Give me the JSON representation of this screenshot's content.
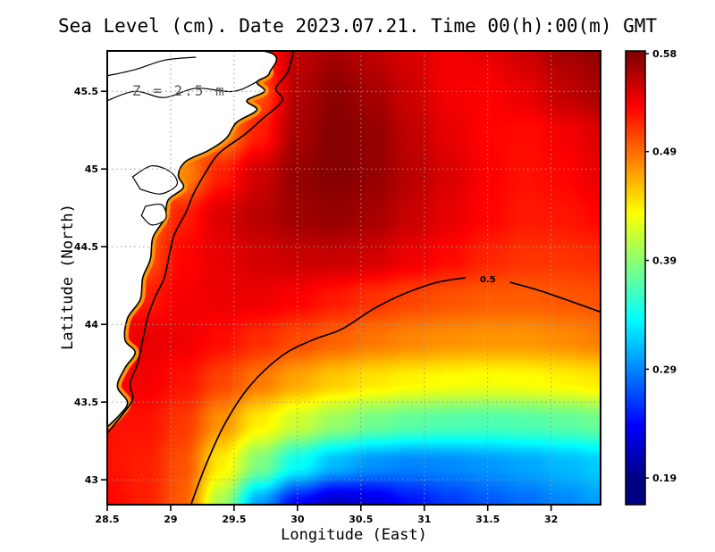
{
  "title": "Sea Level (cm). Date 2023.07.21. Time 00(h):00(m) GMT",
  "xlabel": "Longitude (East)",
  "ylabel": "Latitude (North)",
  "annotation": "Z = 2.5 m",
  "colors": {
    "land": "#ffffff",
    "coast_stroke": "#000000",
    "fringe": "#ff9000",
    "gridline": "#9a9a9a",
    "frame": "#000000",
    "annotation_text": "#5a5a5a"
  },
  "chart_data": {
    "type": "heatmap",
    "title": "Sea Level (cm). Date 2023.07.21. Time 00(h):00(m) GMT",
    "x_range": [
      28.5,
      32.39
    ],
    "y_range": [
      42.84,
      45.76
    ],
    "x_ticks": {
      "values": [
        28.5,
        29,
        29.5,
        30,
        30.5,
        31,
        31.5,
        32
      ],
      "labels": [
        "28.5",
        "29",
        "29.5",
        "30",
        "30.5",
        "31",
        "31.5",
        "32"
      ]
    },
    "y_ticks": {
      "values": [
        43,
        43.5,
        44,
        44.5,
        45,
        45.5
      ],
      "labels": [
        "43",
        "43.5",
        "44",
        "44.5",
        "45",
        "45.5"
      ]
    },
    "grid_on": true,
    "legend_position": "none",
    "colorbar": {
      "position": "right",
      "vmin": 0.19,
      "vmax": 0.58,
      "ticks": [
        {
          "value": 0.58,
          "label": "0.58"
        },
        {
          "value": 0.49,
          "label": "0.49"
        },
        {
          "value": 0.39,
          "label": "0.39"
        },
        {
          "value": 0.29,
          "label": "0.29"
        },
        {
          "value": 0.19,
          "label": "0.19"
        }
      ]
    },
    "palette": [
      {
        "t": 0,
        "color": "#000085"
      },
      {
        "t": 0.125,
        "color": "#0000ff"
      },
      {
        "t": 0.375,
        "color": "#00ffff"
      },
      {
        "t": 0.625,
        "color": "#ffff00"
      },
      {
        "t": 0.875,
        "color": "#ff0000"
      },
      {
        "t": 1,
        "color": "#800000"
      }
    ],
    "grid": {
      "lon0": 28.5,
      "dlon": 0.3,
      "ncols": 14,
      "lat0": 45.76,
      "dlat": 0.265455,
      "nrows": 12,
      "order": "north_to_south",
      "values": [
        [
          0.52,
          0.52,
          0.51,
          0.5,
          0.51,
          0.555,
          0.565,
          0.555,
          0.545,
          0.535,
          0.54,
          0.55,
          0.565,
          0.572
        ],
        [
          0.52,
          0.52,
          0.51,
          0.49,
          0.5,
          0.56,
          0.575,
          0.565,
          0.55,
          0.535,
          0.532,
          0.54,
          0.555,
          0.565
        ],
        [
          0.52,
          0.52,
          0.51,
          0.48,
          0.52,
          0.565,
          0.578,
          0.572,
          0.555,
          0.54,
          0.53,
          0.527,
          0.535,
          0.545
        ],
        [
          0.52,
          0.51,
          0.48,
          0.52,
          0.55,
          0.572,
          0.578,
          0.572,
          0.558,
          0.545,
          0.532,
          0.525,
          0.53,
          0.54
        ],
        [
          0.52,
          0.49,
          0.52,
          0.545,
          0.558,
          0.568,
          0.572,
          0.565,
          0.552,
          0.54,
          0.53,
          0.522,
          0.524,
          0.53
        ],
        [
          0.52,
          0.5,
          0.53,
          0.54,
          0.548,
          0.552,
          0.553,
          0.548,
          0.538,
          0.528,
          0.518,
          0.512,
          0.512,
          0.515
        ],
        [
          0.52,
          0.52,
          0.535,
          0.538,
          0.538,
          0.532,
          0.522,
          0.512,
          0.505,
          0.5,
          0.497,
          0.496,
          0.498,
          0.5
        ],
        [
          0.53,
          0.54,
          0.537,
          0.527,
          0.515,
          0.503,
          0.494,
          0.486,
          0.48,
          0.476,
          0.474,
          0.474,
          0.478,
          0.484
        ],
        [
          0.53,
          0.535,
          0.525,
          0.505,
          0.485,
          0.467,
          0.453,
          0.443,
          0.437,
          0.433,
          0.431,
          0.433,
          0.437,
          0.442
        ],
        [
          0.525,
          0.525,
          0.51,
          0.475,
          0.44,
          0.415,
          0.395,
          0.38,
          0.372,
          0.368,
          0.366,
          0.368,
          0.372,
          0.378
        ],
        [
          0.525,
          0.52,
          0.5,
          0.44,
          0.385,
          0.34,
          0.31,
          0.295,
          0.29,
          0.292,
          0.297,
          0.303,
          0.31,
          0.318
        ],
        [
          0.53,
          0.52,
          0.495,
          0.4,
          0.3,
          0.24,
          0.215,
          0.225,
          0.245,
          0.26,
          0.272,
          0.28,
          0.29,
          0.3
        ]
      ]
    },
    "contours": [
      {
        "level": 0.5,
        "label": "0.5",
        "label_at": [
          31.5,
          44.29
        ],
        "parts": [
          [
            [
              32.39,
              44.08
            ],
            [
              32.15,
              44.15
            ],
            [
              31.9,
              44.22
            ],
            [
              31.68,
              44.27
            ]
          ],
          [
            [
              31.32,
              44.3
            ],
            [
              31.1,
              44.27
            ],
            [
              30.85,
              44.2
            ],
            [
              30.6,
              44.1
            ],
            [
              30.35,
              43.97
            ],
            [
              30.12,
              43.9
            ],
            [
              29.88,
              43.8
            ],
            [
              29.62,
              43.6
            ],
            [
              29.42,
              43.35
            ],
            [
              29.27,
              43.08
            ],
            [
              29.16,
              42.84
            ]
          ]
        ]
      },
      {
        "level": 0.5,
        "label": null,
        "parts": [
          [
            [
              29.97,
              45.76
            ],
            [
              29.92,
              45.62
            ],
            [
              29.83,
              45.52
            ],
            [
              29.88,
              45.44
            ],
            [
              29.72,
              45.32
            ],
            [
              29.58,
              45.22
            ],
            [
              29.38,
              45.1
            ],
            [
              29.27,
              44.97
            ],
            [
              29.18,
              44.84
            ],
            [
              29.12,
              44.72
            ],
            [
              29.03,
              44.58
            ],
            [
              28.99,
              44.45
            ],
            [
              28.95,
              44.3
            ],
            [
              28.88,
              44.18
            ],
            [
              28.82,
              44.05
            ],
            [
              28.78,
              43.9
            ],
            [
              28.74,
              43.75
            ],
            [
              28.68,
              43.62
            ],
            [
              28.7,
              43.52
            ],
            [
              28.62,
              43.42
            ],
            [
              28.5,
              43.3
            ]
          ]
        ]
      }
    ],
    "coastline": {
      "land_polygon": [
        [
          28.5,
          45.76
        ],
        [
          29.72,
          45.76
        ],
        [
          29.78,
          45.62
        ],
        [
          29.68,
          45.56
        ],
        [
          29.74,
          45.5
        ],
        [
          29.6,
          45.44
        ],
        [
          29.68,
          45.38
        ],
        [
          29.52,
          45.3
        ],
        [
          29.44,
          45.2
        ],
        [
          29.3,
          45.12
        ],
        [
          29.12,
          45.05
        ],
        [
          29.06,
          44.96
        ],
        [
          29.1,
          44.88
        ],
        [
          28.98,
          44.8
        ],
        [
          28.95,
          44.68
        ],
        [
          28.86,
          44.56
        ],
        [
          28.84,
          44.42
        ],
        [
          28.78,
          44.3
        ],
        [
          28.76,
          44.16
        ],
        [
          28.66,
          44.04
        ],
        [
          28.64,
          43.9
        ],
        [
          28.72,
          43.82
        ],
        [
          28.64,
          43.72
        ],
        [
          28.58,
          43.6
        ],
        [
          28.66,
          43.5
        ],
        [
          28.6,
          43.42
        ],
        [
          28.5,
          43.34
        ]
      ],
      "lakes": [
        [
          [
            28.7,
            44.95
          ],
          [
            28.85,
            45.02
          ],
          [
            29.0,
            44.98
          ],
          [
            29.05,
            44.9
          ],
          [
            28.92,
            44.84
          ],
          [
            28.76,
            44.87
          ]
        ],
        [
          [
            28.8,
            44.76
          ],
          [
            28.93,
            44.77
          ],
          [
            28.96,
            44.68
          ],
          [
            28.85,
            44.64
          ],
          [
            28.77,
            44.7
          ]
        ]
      ],
      "rivers": [
        [
          [
            28.5,
            45.44
          ],
          [
            28.72,
            45.5
          ],
          [
            28.95,
            45.46
          ],
          [
            29.2,
            45.52
          ],
          [
            29.5,
            45.5
          ],
          [
            29.72,
            45.58
          ]
        ],
        [
          [
            28.5,
            45.6
          ],
          [
            28.72,
            45.64
          ],
          [
            28.95,
            45.7
          ],
          [
            29.2,
            45.72
          ]
        ]
      ]
    }
  }
}
